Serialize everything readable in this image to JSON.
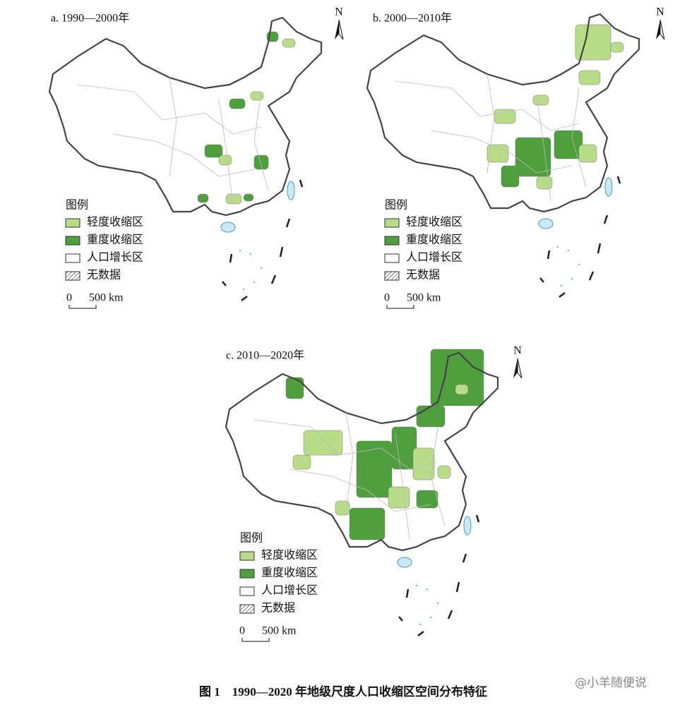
{
  "panels": [
    {
      "title": "a. 1990—2000年",
      "north": "N",
      "legend_title": "图例",
      "legend_items": [
        "轻度收缩区",
        "重度收缩区",
        "人口增长区",
        "无数据"
      ],
      "scale_zero": "0",
      "scale_label": "500 km"
    },
    {
      "title": "b. 2000—2010年",
      "north": "N",
      "legend_title": "图例",
      "legend_items": [
        "轻度收缩区",
        "重度收缩区",
        "人口增长区",
        "无数据"
      ],
      "scale_zero": "0",
      "scale_label": "500 km"
    },
    {
      "title": "c. 2010—2020年",
      "north": "N",
      "legend_title": "图例",
      "legend_items": [
        "轻度收缩区",
        "重度收缩区",
        "人口增长区",
        "无数据"
      ],
      "scale_zero": "0",
      "scale_label": "500 km"
    }
  ],
  "caption": "图 1　1990—2020 年地级尺度人口收缩区空间分布特征",
  "watermark": "@小羊随便说"
}
